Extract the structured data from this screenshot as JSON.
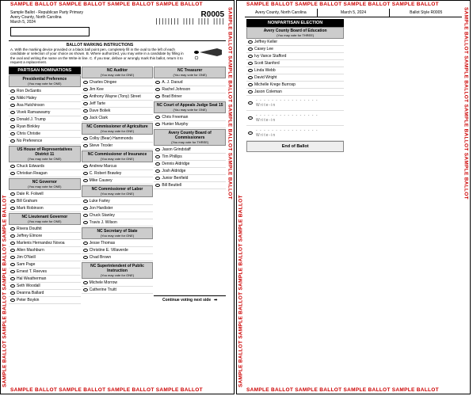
{
  "sample_text": "SAMPLE BALLOT   SAMPLE BALLOT   SAMPLE BALLOT   SAMPLE BALLOT",
  "header": {
    "line1": "Sample Ballot - Republican Party Primary",
    "line2": "Avery County, North Carolina",
    "line3": "March 5, 2024",
    "code": "R0005",
    "barcode": "||||||||  |||| |||| ||||"
  },
  "instructions": {
    "title": "BALLOT MARKING INSTRUCTIONS",
    "text": "A. With the marking device provided or a black ball point pen, completely fill in the oval to the left of each candidate or selection of your choice as shown.\nB. Where authorized, you may write in a candidate by filling in the oval and writing the name on the Write-in line.\nC. If you tear, deface or wrongly mark this ballot, return it to request a replacement."
  },
  "partisan_label": "PARTISAN NOMINATIONS",
  "nonpartisan_label": "NONPARTISAN ELECTION",
  "vote_one": "(You may vote for ONE)",
  "vote_three": "(You may vote for THREE)",
  "contests": {
    "pres": {
      "title": "Presidential Preference",
      "opts": [
        "Ron DeSantis",
        "Nikki Haley",
        "Asa Hutchinson",
        "Vivek Ramaswamy",
        "Donald J. Trump",
        "Ryan Binkley",
        "Chris Christie",
        "No Preference"
      ]
    },
    "ushouse": {
      "title": "US House of Representatives District 11",
      "opts": [
        "Chuck Edwards",
        "Christian Reagan"
      ]
    },
    "gov": {
      "title": "NC Governor",
      "opts": [
        "Dale R. Folwell",
        "Bill Graham",
        "Mark Robinson"
      ]
    },
    "ltgov": {
      "title": "NC Lieutenant Governor",
      "opts": [
        "Rivera Douthit",
        "Jeffrey Elmore",
        "Marlenis Hernandez Novoa",
        "Allen Mashburn",
        "Jim O'Neill",
        "Sam Page",
        "Ernest T. Reeves",
        "Hal Weatherman",
        "Seth Woodall",
        "Deanna Ballard",
        "Peter Boykin"
      ]
    },
    "auditor": {
      "title": "NC Auditor",
      "opts": [
        "Charles Dingee",
        "Jim Kee",
        "Anthony Wayne (Tony) Street",
        "Jeff Tarte",
        "Dave Boliek",
        "Jack Clark"
      ]
    },
    "agri": {
      "title": "NC Commissioner of Agriculture",
      "opts": [
        "Colby (Bear) Hammonds",
        "Steve Troxler"
      ]
    },
    "ins": {
      "title": "NC Commissioner of Insurance",
      "opts": [
        "Andrew Marcus",
        "C. Robert Brawley",
        "Mike Causey"
      ]
    },
    "labor": {
      "title": "NC Commissioner of Labor",
      "opts": [
        "Luke Farley",
        "Jon Hardister",
        "Chuck Stanley",
        "Travis J. Wilson"
      ]
    },
    "sos": {
      "title": "NC Secretary of State",
      "opts": [
        "Jesse Thomas",
        "Christine E. Villaverde",
        "Chad Brown"
      ]
    },
    "supt": {
      "title": "NC Superintendent of Public Instruction",
      "opts": [
        "Michele Morrow",
        "Catherine Truitt"
      ]
    },
    "treas": {
      "title": "NC Treasurer",
      "opts": [
        "A. J. Daoud",
        "Rachel Johnson",
        "Brad Briner"
      ]
    },
    "appeals": {
      "title": "NC Court of Appeals Judge Seat 15",
      "opts": [
        "Chris Freeman",
        "Hunter Murphy"
      ]
    },
    "county": {
      "title": "Avery County Board of Commissioners",
      "opts": [
        "Jason Grindstaff",
        "Tim Phillips",
        "Dennis Aldridge",
        "Josh Aldridge",
        "Junior Benfield",
        "Bill Beuttell"
      ]
    },
    "boe": {
      "title": "Avery County Board of Education",
      "opts": [
        "Jeffrey Keller",
        "Casey Lee",
        "Ivy Vance Stafford",
        "Scott Stanford",
        "Linda Webb",
        "David Wright",
        "Michelle Krege Burrosp",
        "Jason Coleman"
      ]
    }
  },
  "writein": "Write-in",
  "continue": "Continue voting next side",
  "end": "End of Ballot",
  "p2": {
    "county": "Avery County, North Carolina",
    "date": "March 5, 2024",
    "style": "Ballot Style R0005"
  }
}
